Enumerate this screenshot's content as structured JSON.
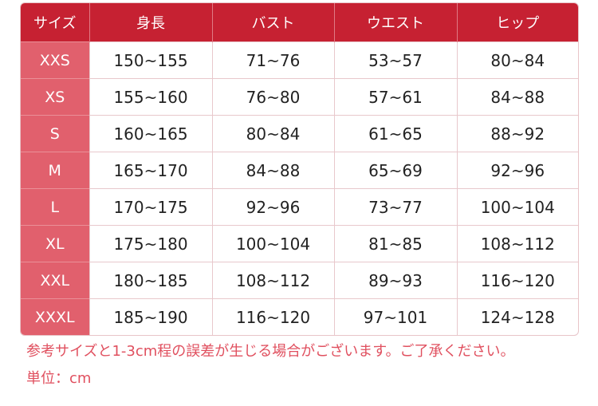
{
  "colors": {
    "header": "#c62132",
    "size_col": "#e1606d",
    "note": "#e0505f"
  },
  "headers": [
    "サイズ",
    "身長",
    "バスト",
    "ウエスト",
    "ヒップ"
  ],
  "rows": [
    [
      "XXS",
      "150~155",
      "71~76",
      "53~57",
      "80~84"
    ],
    [
      "XS",
      "155~160",
      "76~80",
      "57~61",
      "84~88"
    ],
    [
      "S",
      "160~165",
      "80~84",
      "61~65",
      "88~92"
    ],
    [
      "M",
      "165~170",
      "84~88",
      "65~69",
      "92~96"
    ],
    [
      "L",
      "170~175",
      "92~96",
      "73~77",
      "100~104"
    ],
    [
      "XL",
      "175~180",
      "100~104",
      "81~85",
      "108~112"
    ],
    [
      "XXL",
      "180~185",
      "108~112",
      "89~93",
      "116~120"
    ],
    [
      "XXXL",
      "185~190",
      "116~120",
      "97~101",
      "124~128"
    ]
  ],
  "notes": {
    "disclaimer": "参考サイズと1-3cm程の誤差が生じる場合がございます。ご了承ください。",
    "unit": "単位：cm"
  }
}
